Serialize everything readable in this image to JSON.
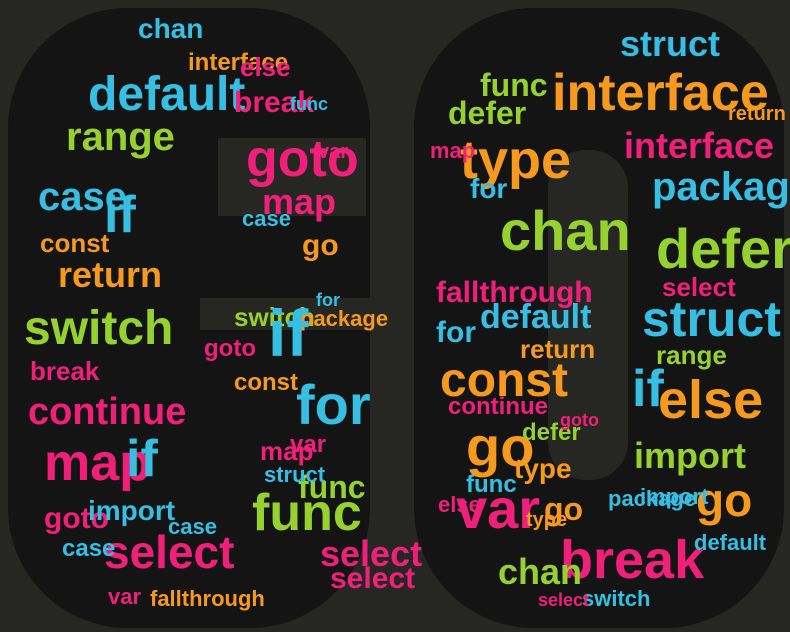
{
  "image": {
    "description_words": [
      "G",
      "O"
    ],
    "background_color": "#262722",
    "letter_fill_color": "#141414",
    "palette": {
      "pink": "#f0207a",
      "cyan": "#36bfe3",
      "green": "#95d12f",
      "orange": "#f59a1f"
    }
  },
  "word_cloud": {
    "g_letter_words": [
      {
        "text": "default",
        "color": "cyan"
      },
      {
        "text": "range",
        "color": "green"
      },
      {
        "text": "if",
        "color": "cyan"
      },
      {
        "text": "case",
        "color": "cyan"
      },
      {
        "text": "const",
        "color": "orange"
      },
      {
        "text": "return",
        "color": "orange"
      },
      {
        "text": "switch",
        "color": "green"
      },
      {
        "text": "break",
        "color": "pink"
      },
      {
        "text": "continue",
        "color": "pink"
      },
      {
        "text": "map",
        "color": "pink"
      },
      {
        "text": "if",
        "color": "cyan"
      },
      {
        "text": "goto",
        "color": "pink"
      },
      {
        "text": "import",
        "color": "cyan"
      },
      {
        "text": "select",
        "color": "pink"
      },
      {
        "text": "case",
        "color": "cyan"
      },
      {
        "text": "fallthrough",
        "color": "orange"
      },
      {
        "text": "var",
        "color": "pink"
      },
      {
        "text": "break",
        "color": "pink"
      },
      {
        "text": "goto",
        "color": "pink"
      },
      {
        "text": "map",
        "color": "pink"
      },
      {
        "text": "chan",
        "color": "cyan"
      },
      {
        "text": "interface",
        "color": "orange"
      },
      {
        "text": "else",
        "color": "pink"
      },
      {
        "text": "func",
        "color": "cyan"
      },
      {
        "text": "go",
        "color": "orange"
      },
      {
        "text": "var",
        "color": "pink"
      },
      {
        "text": "case",
        "color": "cyan"
      },
      {
        "text": "for",
        "color": "cyan"
      },
      {
        "text": "map",
        "color": "pink"
      },
      {
        "text": "case",
        "color": "cyan"
      },
      {
        "text": "switch",
        "color": "green"
      },
      {
        "text": "package",
        "color": "orange"
      },
      {
        "text": "for",
        "color": "cyan"
      },
      {
        "text": "if",
        "color": "cyan"
      },
      {
        "text": "func",
        "color": "green"
      },
      {
        "text": "func",
        "color": "green"
      },
      {
        "text": "select",
        "color": "pink"
      },
      {
        "text": "select",
        "color": "pink"
      },
      {
        "text": "var",
        "color": "pink"
      },
      {
        "text": "goto",
        "color": "pink"
      },
      {
        "text": "struct",
        "color": "cyan"
      },
      {
        "text": "const",
        "color": "orange"
      }
    ],
    "o_letter_words": [
      {
        "text": "interface",
        "color": "orange"
      },
      {
        "text": "struct",
        "color": "cyan"
      },
      {
        "text": "func",
        "color": "green"
      },
      {
        "text": "defer",
        "color": "green"
      },
      {
        "text": "type",
        "color": "orange"
      },
      {
        "text": "interface",
        "color": "pink"
      },
      {
        "text": "package",
        "color": "cyan"
      },
      {
        "text": "chan",
        "color": "green"
      },
      {
        "text": "defer",
        "color": "green"
      },
      {
        "text": "fallthrough",
        "color": "pink"
      },
      {
        "text": "struct",
        "color": "cyan"
      },
      {
        "text": "default",
        "color": "cyan"
      },
      {
        "text": "for",
        "color": "cyan"
      },
      {
        "text": "const",
        "color": "orange"
      },
      {
        "text": "if",
        "color": "cyan"
      },
      {
        "text": "else",
        "color": "orange"
      },
      {
        "text": "go",
        "color": "orange"
      },
      {
        "text": "import",
        "color": "green"
      },
      {
        "text": "var",
        "color": "pink"
      },
      {
        "text": "go",
        "color": "orange"
      },
      {
        "text": "break",
        "color": "pink"
      },
      {
        "text": "chan",
        "color": "green"
      },
      {
        "text": "return",
        "color": "orange"
      },
      {
        "text": "type",
        "color": "orange"
      },
      {
        "text": "go",
        "color": "orange"
      },
      {
        "text": "select",
        "color": "pink"
      },
      {
        "text": "defer",
        "color": "green"
      },
      {
        "text": "goto",
        "color": "pink"
      },
      {
        "text": "default",
        "color": "cyan"
      },
      {
        "text": "switch",
        "color": "cyan"
      },
      {
        "text": "range",
        "color": "green"
      },
      {
        "text": "continue",
        "color": "pink"
      },
      {
        "text": "else",
        "color": "pink"
      },
      {
        "text": "import",
        "color": "cyan"
      },
      {
        "text": "func",
        "color": "cyan"
      },
      {
        "text": "for",
        "color": "cyan"
      },
      {
        "text": "map",
        "color": "pink"
      },
      {
        "text": "return",
        "color": "orange"
      },
      {
        "text": "package",
        "color": "cyan"
      },
      {
        "text": "type",
        "color": "orange"
      },
      {
        "text": "select",
        "color": "pink"
      }
    ]
  }
}
